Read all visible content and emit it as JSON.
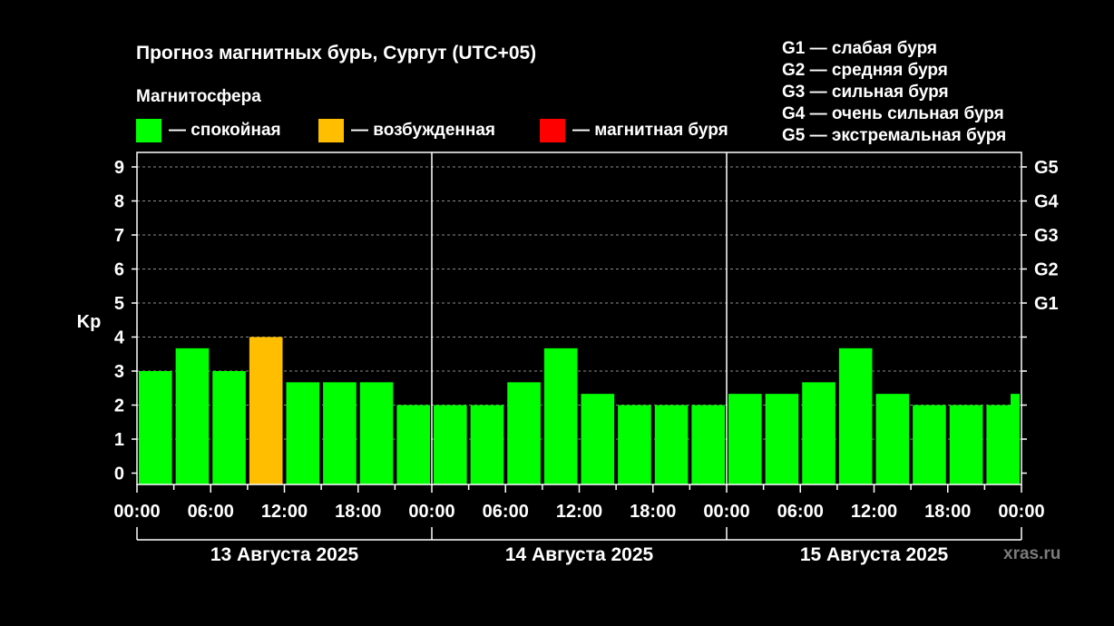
{
  "title": "Прогноз магнитных бурь, Сургут (UTC+05)",
  "legend_title": "Магнитосфера",
  "legend": [
    {
      "label": "— спокойная",
      "color": "#00ff00"
    },
    {
      "label": "— возбужденная",
      "color": "#ffbf00"
    },
    {
      "label": "— магнитная буря",
      "color": "#ff0000"
    }
  ],
  "g_legend": [
    "G1 — слабая буря",
    "G2 — средняя буря",
    "G3 — сильная буря",
    "G4 — очень сильная буря",
    "G5 — экстремальная буря"
  ],
  "watermark": "xras.ru",
  "chart_data": {
    "type": "bar",
    "ylabel": "Kp",
    "ylim": [
      0,
      9
    ],
    "yticks": [
      "0",
      "1",
      "2",
      "3",
      "4",
      "5",
      "6",
      "7",
      "8",
      "9"
    ],
    "right_ticks": [
      {
        "kp": 5,
        "label": "G1"
      },
      {
        "kp": 6,
        "label": "G2"
      },
      {
        "kp": 7,
        "label": "G3"
      },
      {
        "kp": 8,
        "label": "G4"
      },
      {
        "kp": 9,
        "label": "G5"
      }
    ],
    "grid": "dashed horizontal",
    "xtick_labels": [
      "00:00",
      "06:00",
      "12:00",
      "18:00",
      "00:00",
      "06:00",
      "12:00",
      "18:00",
      "00:00",
      "06:00",
      "12:00",
      "18:00",
      "00:00"
    ],
    "days": [
      "13 Августа 2025",
      "14 Августа 2025",
      "15 Августа 2025"
    ],
    "categories": [
      "13 00-03",
      "13 03-06",
      "13 06-09",
      "13 09-12",
      "13 12-15",
      "13 15-18",
      "13 18-21",
      "13 21-24",
      "14 00-03",
      "14 03-06",
      "14 06-09",
      "14 09-12",
      "14 12-15",
      "14 15-18",
      "14 18-21",
      "14 21-24",
      "15 00-03",
      "15 03-06",
      "15 06-09",
      "15 09-12",
      "15 12-15",
      "15 15-18",
      "15 18-21",
      "15 21-24"
    ],
    "values": [
      3.0,
      3.67,
      3.0,
      4.0,
      2.67,
      2.67,
      2.67,
      2.0,
      2.0,
      2.0,
      2.67,
      3.67,
      2.33,
      2.0,
      2.0,
      2.0,
      2.33,
      2.33,
      2.67,
      3.67,
      2.33,
      2.0,
      2.0,
      2.0
    ],
    "status": [
      "calm",
      "calm",
      "calm",
      "excited",
      "calm",
      "calm",
      "calm",
      "calm",
      "calm",
      "calm",
      "calm",
      "calm",
      "calm",
      "calm",
      "calm",
      "calm",
      "calm",
      "calm",
      "calm",
      "calm",
      "calm",
      "calm",
      "calm",
      "calm"
    ],
    "status_colors": {
      "calm": "#00ff00",
      "excited": "#ffbf00",
      "storm": "#ff0000"
    },
    "partial_bar": {
      "value": 2.33,
      "status": "calm"
    }
  }
}
